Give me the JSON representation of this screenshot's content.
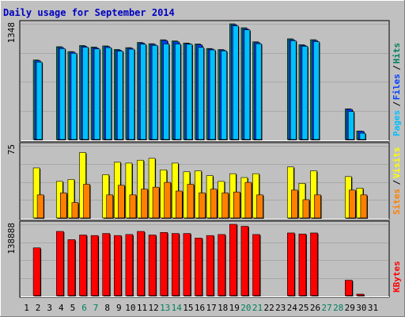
{
  "title": "Daily usage for September 2014",
  "colors": {
    "background": "#c0c0c0",
    "title": "#0000c0",
    "hits": "#00805c",
    "files": "#0040ff",
    "pages": "#00c0ff",
    "visits": "#ffff00",
    "sites": "#ff8000",
    "kbytes": "#ff0000",
    "weekend_day": "#00805c",
    "weekday": "#000000"
  },
  "chart_data": [
    {
      "type": "bar",
      "title": "Daily usage for September 2014",
      "ymax_label": "1348",
      "ylim": [
        0,
        1348
      ],
      "legend": [
        {
          "label": "Pages",
          "color": "#00c0ff"
        },
        {
          "label": "Files",
          "color": "#0040ff"
        },
        {
          "label": "Hits",
          "color": "#00805c"
        }
      ],
      "categories": [
        "1",
        "2",
        "3",
        "4",
        "5",
        "6",
        "7",
        "8",
        "9",
        "10",
        "11",
        "12",
        "13",
        "14",
        "15",
        "16",
        "17",
        "18",
        "19",
        "20",
        "21",
        "22",
        "23",
        "24",
        "25",
        "26",
        "27",
        "28",
        "29",
        "30",
        "31"
      ],
      "series": [
        {
          "name": "Hits",
          "values": [
            0,
            926,
            0,
            1081,
            1024,
            1095,
            1078,
            1090,
            1049,
            1070,
            1131,
            1116,
            1162,
            1148,
            1124,
            1113,
            1060,
            1048,
            1348,
            1302,
            1138,
            0,
            0,
            1173,
            1104,
            1163,
            0,
            0,
            357,
            99,
            0
          ]
        },
        {
          "name": "Files",
          "values": [
            0,
            918,
            0,
            1072,
            1018,
            1086,
            1068,
            1083,
            1041,
            1063,
            1123,
            1108,
            1153,
            1138,
            1117,
            1103,
            1053,
            1042,
            1336,
            1290,
            1129,
            0,
            0,
            1163,
            1096,
            1153,
            0,
            0,
            352,
            96,
            0
          ]
        },
        {
          "name": "Pages",
          "values": [
            0,
            902,
            0,
            1058,
            1004,
            1075,
            1055,
            1070,
            1030,
            1052,
            1110,
            1096,
            1113,
            1113,
            1110,
            1073,
            1043,
            1032,
            1323,
            1277,
            1115,
            0,
            0,
            1150,
            1085,
            1140,
            0,
            0,
            326,
            73,
            0
          ]
        }
      ]
    },
    {
      "type": "bar",
      "ymax_label": "75",
      "ylim": [
        0,
        75
      ],
      "legend": [
        {
          "label": "Sites",
          "color": "#ff8000"
        },
        {
          "label": "Visits",
          "color": "#ffff00"
        }
      ],
      "categories": [
        "1",
        "2",
        "3",
        "4",
        "5",
        "6",
        "7",
        "8",
        "9",
        "10",
        "11",
        "12",
        "13",
        "14",
        "15",
        "16",
        "17",
        "18",
        "19",
        "20",
        "21",
        "22",
        "23",
        "24",
        "25",
        "26",
        "27",
        "28",
        "29",
        "30",
        "31"
      ],
      "series": [
        {
          "name": "Visits",
          "values": [
            0,
            52,
            0,
            38,
            40,
            68,
            0,
            45,
            58,
            57,
            60,
            62,
            50,
            57,
            48,
            49,
            44,
            38,
            46,
            42,
            46,
            0,
            0,
            53,
            36,
            49,
            0,
            0,
            43,
            31,
            0
          ]
        },
        {
          "name": "Sites",
          "values": [
            0,
            24,
            0,
            26,
            16,
            35,
            0,
            24,
            34,
            24,
            30,
            32,
            37,
            28,
            35,
            26,
            30,
            26,
            27,
            37,
            24,
            0,
            0,
            29,
            19,
            24,
            0,
            0,
            29,
            24,
            0
          ]
        }
      ]
    },
    {
      "type": "bar",
      "ymax_label": "138888",
      "ylim": [
        0,
        138888
      ],
      "legend": [
        {
          "label": "KBytes",
          "color": "#ff0000"
        }
      ],
      "categories": [
        "1",
        "2",
        "3",
        "4",
        "5",
        "6",
        "7",
        "8",
        "9",
        "10",
        "11",
        "12",
        "13",
        "14",
        "15",
        "16",
        "17",
        "18",
        "19",
        "20",
        "21",
        "22",
        "23",
        "24",
        "25",
        "26",
        "27",
        "28",
        "29",
        "30",
        "31"
      ],
      "series": [
        {
          "name": "KBytes",
          "values": [
            0,
            93000,
            0,
            125000,
            109000,
            118000,
            117000,
            121000,
            117000,
            119000,
            125000,
            118000,
            123000,
            121000,
            121000,
            112000,
            117000,
            119000,
            138888,
            135000,
            119000,
            0,
            0,
            122000,
            120000,
            122000,
            0,
            0,
            30000,
            3000,
            0
          ]
        }
      ]
    }
  ],
  "x_labels": {
    "days": [
      "1",
      "2",
      "3",
      "4",
      "5",
      "6",
      "7",
      "8",
      "9",
      "10",
      "11",
      "12",
      "13",
      "14",
      "15",
      "16",
      "17",
      "18",
      "19",
      "20",
      "21",
      "22",
      "23",
      "24",
      "25",
      "26",
      "27",
      "28",
      "29",
      "30",
      "31"
    ],
    "weekend": [
      6,
      7,
      13,
      14,
      20,
      21,
      27,
      28
    ]
  }
}
